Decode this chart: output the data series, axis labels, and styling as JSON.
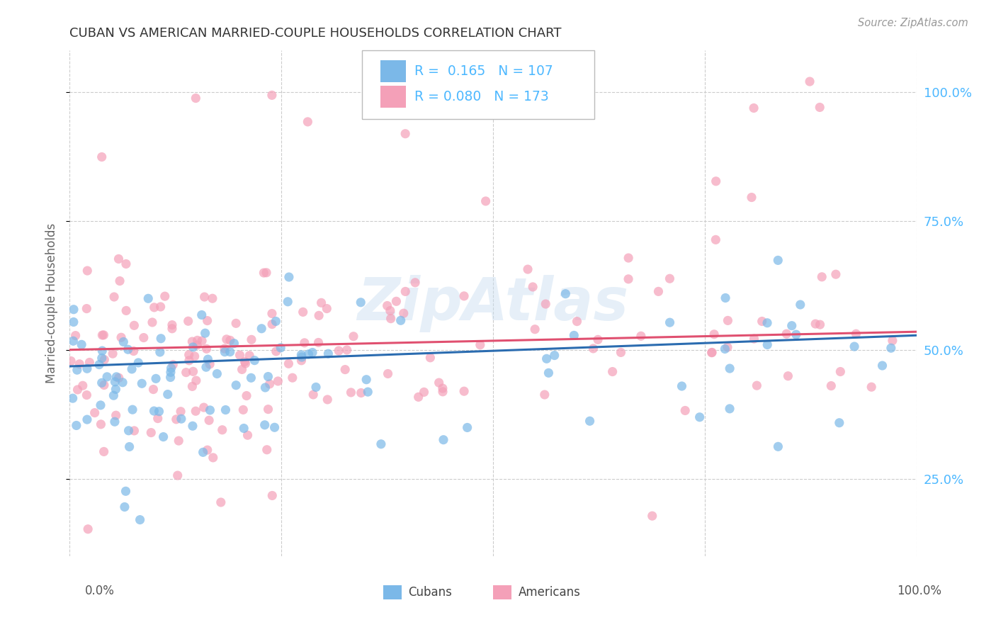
{
  "title": "CUBAN VS AMERICAN MARRIED-COUPLE HOUSEHOLDS CORRELATION CHART",
  "source_text": "Source: ZipAtlas.com",
  "ylabel": "Married-couple Households",
  "watermark": "ZipAtlas",
  "legend_R_cuban": "0.165",
  "legend_N_cuban": "107",
  "legend_R_american": "0.080",
  "legend_N_american": "173",
  "legend_label_cuban": "Cubans",
  "legend_label_american": "Americans",
  "cuban_color": "#7bb8e8",
  "cuban_line_color": "#2b6cb0",
  "american_color": "#f4a0b8",
  "american_line_color": "#e05070",
  "yticks": [
    0.25,
    0.5,
    0.75,
    1.0
  ],
  "xlim": [
    0.0,
    1.0
  ],
  "ylim": [
    0.1,
    1.08
  ],
  "background_color": "#ffffff",
  "grid_color": "#cccccc",
  "title_color": "#333333",
  "axis_label_color": "#666666",
  "right_axis_color": "#4db8ff",
  "cuban_trend_start": 0.468,
  "cuban_trend_end": 0.528,
  "american_trend_start": 0.5,
  "american_trend_end": 0.535
}
